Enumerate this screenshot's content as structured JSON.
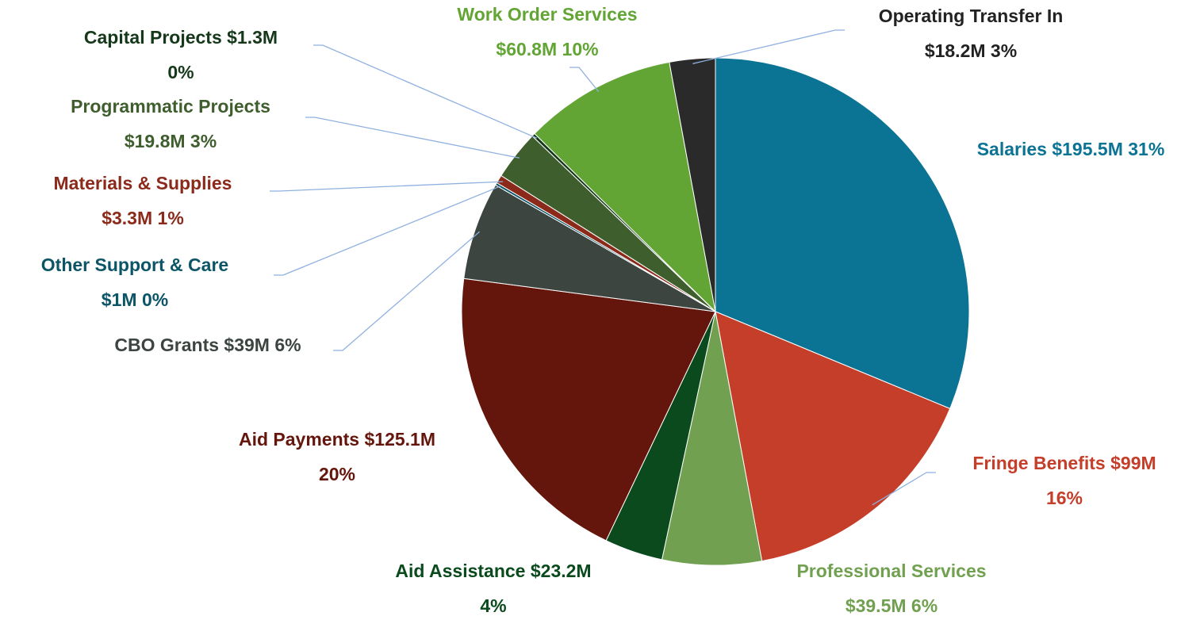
{
  "chart_data": {
    "type": "pie",
    "categories": [
      "Salaries",
      "Fringe Benefits",
      "Professional Services",
      "Aid Assistance",
      "Aid Payments",
      "CBO Grants",
      "Other Support & Care",
      "Materials & Supplies",
      "Programmatic Projects",
      "Capital Projects",
      "Work Order Services",
      "Operating Transfer In"
    ],
    "values": [
      195.5,
      99,
      39.5,
      23.2,
      125.1,
      39,
      1,
      3.3,
      19.8,
      1.3,
      60.8,
      18.2
    ],
    "value_labels": [
      "$195.5M",
      "$99M",
      "$39.5M",
      "$23.2M",
      "$125.1M",
      "$39M",
      "$1M",
      "$3.3M",
      "$19.8M",
      "$1.3M",
      "$60.8M",
      "$18.2M"
    ],
    "percents": [
      31,
      16,
      6,
      4,
      20,
      6,
      0,
      1,
      3,
      0,
      10,
      3
    ],
    "percent_labels": [
      "31%",
      "16%",
      "6%",
      "4%",
      "20%",
      "6%",
      "0%",
      "1%",
      "3%",
      "0%",
      "10%",
      "3%"
    ],
    "colors": [
      "#0b7393",
      "#c43e2a",
      "#70a050",
      "#0a4a1c",
      "#65160c",
      "#3c4540",
      "#0b5566",
      "#8b2a1a",
      "#3f5e2e",
      "#15381a",
      "#62a534",
      "#2a2a2a"
    ]
  }
}
